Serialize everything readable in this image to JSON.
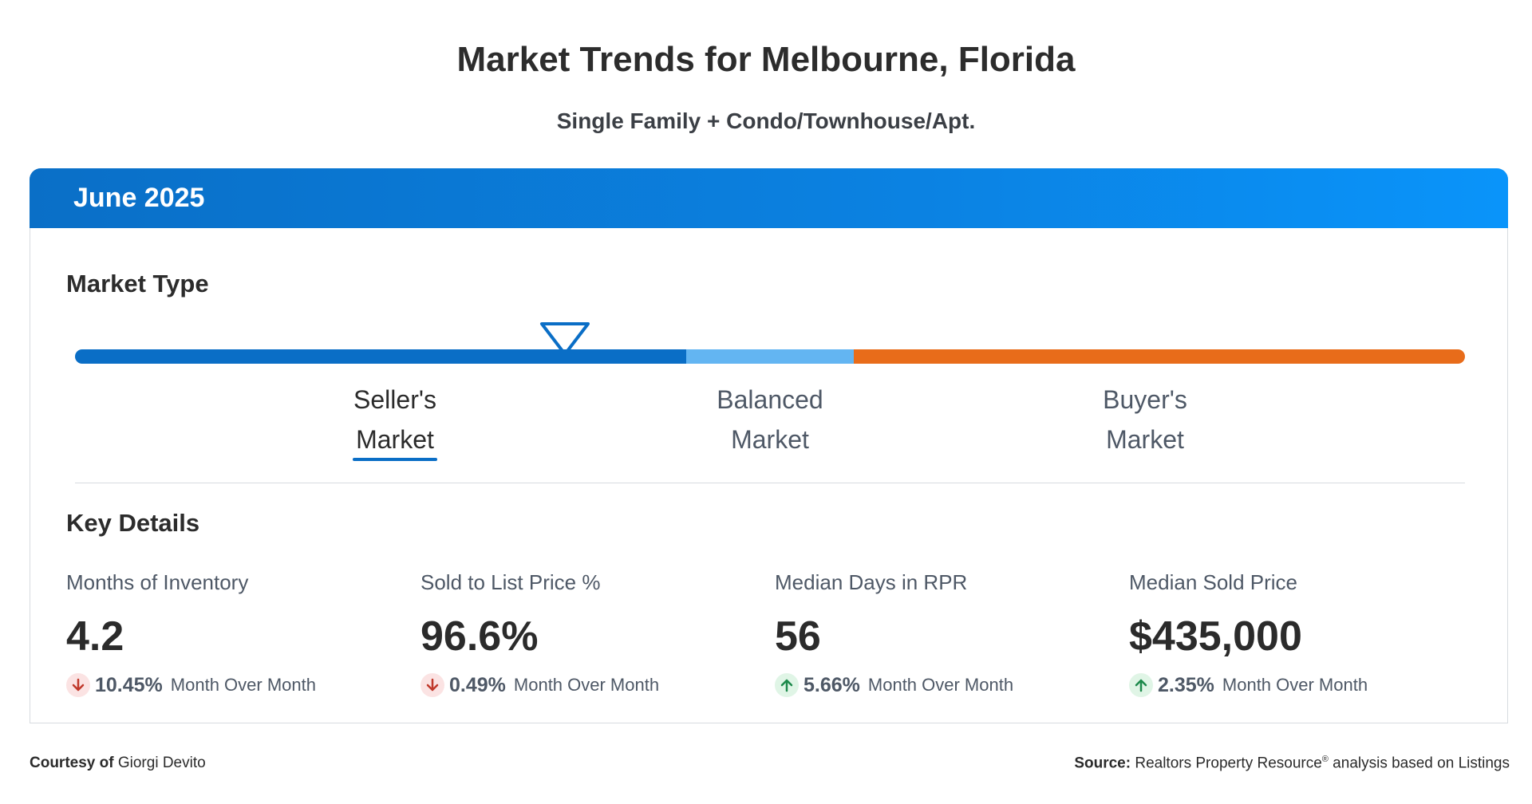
{
  "page": {
    "title": "Market Trends for Melbourne, Florida",
    "subtitle": "Single Family + Condo/Townhouse/Apt."
  },
  "card": {
    "period": "June 2025",
    "market_type": {
      "heading": "Market Type",
      "labels": {
        "seller_line1": "Seller's",
        "seller_line2": "Market",
        "balanced_line1": "Balanced",
        "balanced_line2": "Market",
        "buyer_line1": "Buyer's",
        "buyer_line2": "Market"
      },
      "active": "seller",
      "colors": {
        "seller": "#0a6ec6",
        "balanced": "#63b5f2",
        "buyer": "#e86c1a"
      }
    },
    "key_details": {
      "heading": "Key Details",
      "metrics": [
        {
          "label": "Months of Inventory",
          "value": "4.2",
          "direction": "down",
          "change": "10.45%",
          "change_text": "Month Over Month"
        },
        {
          "label": "Sold to List Price %",
          "value": "96.6%",
          "direction": "down",
          "change": "0.49%",
          "change_text": "Month Over Month"
        },
        {
          "label": "Median Days in RPR",
          "value": "56",
          "direction": "up",
          "change": "5.66%",
          "change_text": "Month Over Month"
        },
        {
          "label": "Median Sold Price",
          "value": "$435,000",
          "direction": "up",
          "change": "2.35%",
          "change_text": "Month Over Month"
        }
      ]
    }
  },
  "footer": {
    "courtesy_label": "Courtesy of",
    "courtesy_name": "Giorgi Devito",
    "source_label": "Source:",
    "source_text_1": "Realtors Property Resource",
    "source_reg": "®",
    "source_text_2": " analysis based on Listings"
  },
  "icons": {
    "indicator": "triangle-down-icon",
    "down": "arrow-down-icon",
    "up": "arrow-up-icon"
  },
  "colors": {
    "header_gradient_start": "#0a6fc7",
    "header_gradient_end": "#0a94fa",
    "down_arrow": "#c0392b",
    "up_arrow": "#1e8a4c"
  }
}
